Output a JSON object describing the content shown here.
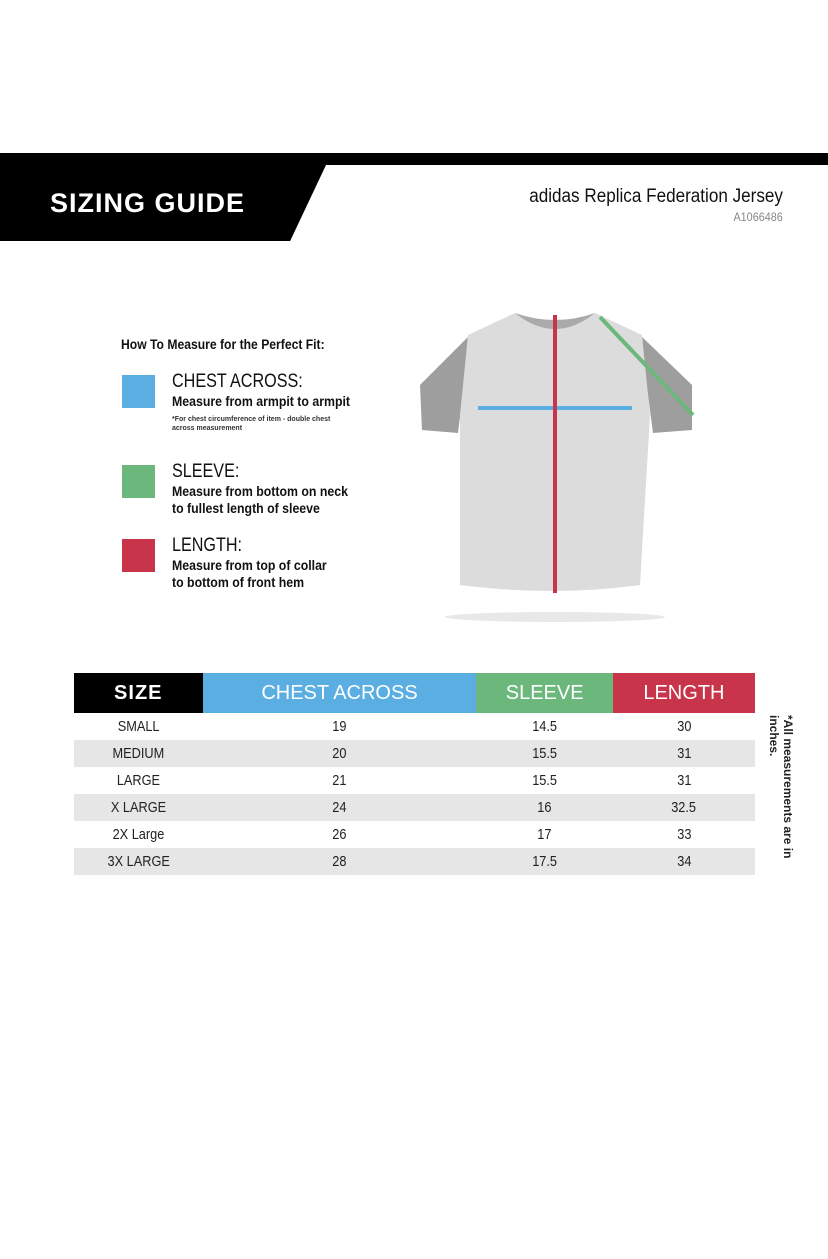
{
  "header": {
    "title": "SIZING GUIDE",
    "product": "adidas Replica Federation Jersey",
    "sku": "A1066486"
  },
  "howto": {
    "heading": "How To Measure for the Perfect Fit:",
    "items": [
      {
        "title": "CHEST ACROSS:",
        "desc1": "Measure from armpit to armpit",
        "note1": "*For chest circumference of item - double chest",
        "note2": "across measurement",
        "color": "#5aaee2"
      },
      {
        "title": "SLEEVE:",
        "desc1": "Measure from bottom on neck",
        "desc2": "to fullest length of sleeve",
        "color": "#6cb87c"
      },
      {
        "title": "LENGTH:",
        "desc1": "Measure from top of collar",
        "desc2": "to bottom of front hem",
        "color": "#c8344a"
      }
    ]
  },
  "table": {
    "headers": [
      "SIZE",
      "CHEST ACROSS",
      "SLEEVE",
      "LENGTH"
    ],
    "header_colors": [
      "#000000",
      "#5aaee2",
      "#6cb87c",
      "#c8344a"
    ],
    "rows": [
      [
        "SMALL",
        "19",
        "14.5",
        "30"
      ],
      [
        "MEDIUM",
        "20",
        "15.5",
        "31"
      ],
      [
        "LARGE",
        "21",
        "15.5",
        "31"
      ],
      [
        "X LARGE",
        "24",
        "16",
        "32.5"
      ],
      [
        "2X Large",
        "26",
        "17",
        "33"
      ],
      [
        "3X LARGE",
        "28",
        "17.5",
        "34"
      ]
    ],
    "note": "*All measurements are in inches."
  }
}
